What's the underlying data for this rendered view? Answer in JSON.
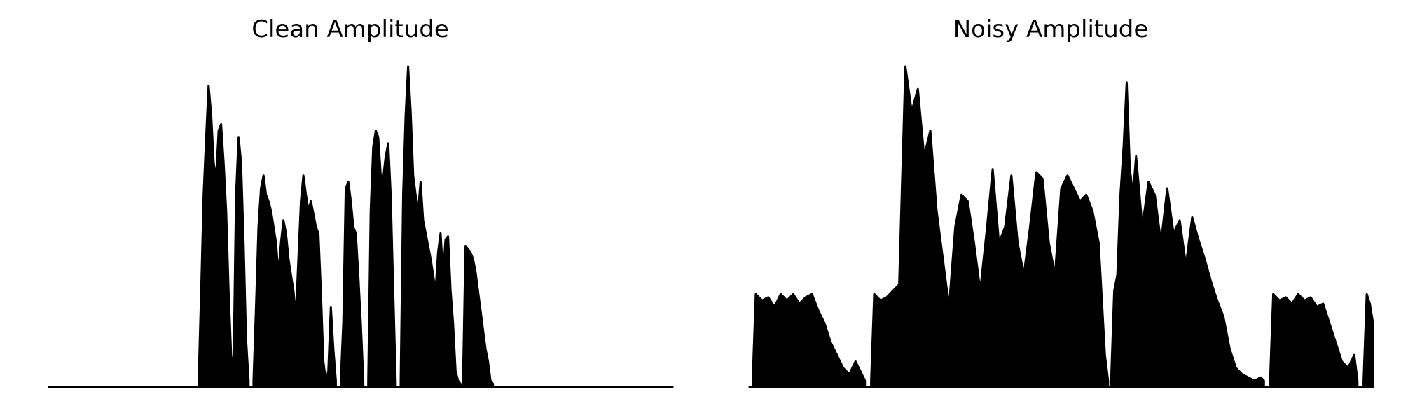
{
  "chart_data": [
    {
      "type": "area",
      "title": "Clean Amplitude",
      "xlabel": "",
      "ylabel": "",
      "grid": false,
      "axes_visible": false,
      "color": "#000000",
      "xlim": [
        0,
        1
      ],
      "ylim": [
        0,
        1
      ],
      "bursts": [
        {
          "x": [
            0.24,
            0.244,
            0.248,
            0.252,
            0.256,
            0.26,
            0.264,
            0.268,
            0.272,
            0.276,
            0.28,
            0.284,
            0.288,
            0.292,
            0.296,
            0.3,
            0.304,
            0.308,
            0.312,
            0.316,
            0.32
          ],
          "y": [
            0.02,
            0.3,
            0.6,
            0.78,
            0.94,
            0.85,
            0.7,
            0.65,
            0.8,
            0.82,
            0.7,
            0.55,
            0.3,
            0.1,
            0.05,
            0.6,
            0.78,
            0.7,
            0.45,
            0.15,
            0.02
          ]
        },
        {
          "x": [
            0.328,
            0.332,
            0.336,
            0.34,
            0.344,
            0.348,
            0.352,
            0.356,
            0.36,
            0.364,
            0.368,
            0.372,
            0.376,
            0.38,
            0.384,
            0.388,
            0.392,
            0.396,
            0.4,
            0.404,
            0.408,
            0.412,
            0.416,
            0.42,
            0.424,
            0.428,
            0.432,
            0.436,
            0.44,
            0.444,
            0.448,
            0.452,
            0.456,
            0.46
          ],
          "y": [
            0.02,
            0.25,
            0.5,
            0.62,
            0.66,
            0.6,
            0.58,
            0.55,
            0.5,
            0.45,
            0.35,
            0.45,
            0.52,
            0.48,
            0.4,
            0.35,
            0.3,
            0.22,
            0.4,
            0.58,
            0.66,
            0.6,
            0.55,
            0.58,
            0.54,
            0.5,
            0.48,
            0.3,
            0.08,
            0.02,
            0.05,
            0.25,
            0.12,
            0.02
          ]
        },
        {
          "x": [
            0.468,
            0.472,
            0.476,
            0.48,
            0.484,
            0.488,
            0.492,
            0.496,
            0.5,
            0.504
          ],
          "y": [
            0.02,
            0.2,
            0.62,
            0.64,
            0.58,
            0.5,
            0.48,
            0.35,
            0.2,
            0.02
          ]
        },
        {
          "x": [
            0.512,
            0.516,
            0.52,
            0.524,
            0.528,
            0.532,
            0.536,
            0.54,
            0.544,
            0.548,
            0.552,
            0.556
          ],
          "y": [
            0.02,
            0.55,
            0.75,
            0.8,
            0.78,
            0.66,
            0.65,
            0.72,
            0.76,
            0.6,
            0.3,
            0.02
          ]
        },
        {
          "x": [
            0.564,
            0.568,
            0.572,
            0.576,
            0.58,
            0.584,
            0.588,
            0.592,
            0.596,
            0.6,
            0.604,
            0.608,
            0.612,
            0.616,
            0.62,
            0.624,
            0.628,
            0.632,
            0.636,
            0.64,
            0.644,
            0.648,
            0.652,
            0.656,
            0.66
          ],
          "y": [
            0.02,
            0.6,
            0.85,
            1.0,
            0.86,
            0.66,
            0.6,
            0.55,
            0.64,
            0.52,
            0.48,
            0.44,
            0.4,
            0.35,
            0.3,
            0.42,
            0.48,
            0.35,
            0.46,
            0.47,
            0.3,
            0.2,
            0.05,
            0.02,
            0.01
          ]
        },
        {
          "x": [
            0.664,
            0.668,
            0.672,
            0.676,
            0.68,
            0.684,
            0.688,
            0.692,
            0.696,
            0.7,
            0.704,
            0.708,
            0.712
          ],
          "y": [
            0.02,
            0.44,
            0.43,
            0.42,
            0.4,
            0.36,
            0.3,
            0.24,
            0.18,
            0.12,
            0.08,
            0.02,
            0.01
          ]
        }
      ]
    },
    {
      "type": "area",
      "title": "Noisy Amplitude",
      "xlabel": "",
      "ylabel": "",
      "grid": false,
      "axes_visible": false,
      "color": "#000000",
      "xlim": [
        0,
        1
      ],
      "ylim": [
        0,
        1
      ],
      "bursts": [
        {
          "x": [
            0.005,
            0.01,
            0.02,
            0.03,
            0.04,
            0.05,
            0.06,
            0.07,
            0.08,
            0.09,
            0.1,
            0.11,
            0.12,
            0.13,
            0.14,
            0.15,
            0.16,
            0.17,
            0.18,
            0.185
          ],
          "y": [
            0.02,
            0.29,
            0.27,
            0.28,
            0.25,
            0.29,
            0.27,
            0.29,
            0.26,
            0.28,
            0.29,
            0.24,
            0.2,
            0.14,
            0.1,
            0.06,
            0.04,
            0.08,
            0.04,
            0.02
          ]
        },
        {
          "x": [
            0.195,
            0.2,
            0.21,
            0.22,
            0.23,
            0.24,
            0.25,
            0.26,
            0.27,
            0.28,
            0.29,
            0.3,
            0.31,
            0.32,
            0.33,
            0.34,
            0.35,
            0.36,
            0.37,
            0.38,
            0.39,
            0.4,
            0.41,
            0.42,
            0.43,
            0.44,
            0.45,
            0.46,
            0.47,
            0.48,
            0.49,
            0.5,
            0.51,
            0.52,
            0.53,
            0.54,
            0.55,
            0.56,
            0.57,
            0.575
          ],
          "y": [
            0.02,
            0.29,
            0.27,
            0.28,
            0.3,
            0.32,
            1.0,
            0.86,
            0.93,
            0.72,
            0.8,
            0.55,
            0.4,
            0.25,
            0.5,
            0.6,
            0.58,
            0.45,
            0.3,
            0.48,
            0.68,
            0.45,
            0.5,
            0.66,
            0.45,
            0.35,
            0.5,
            0.67,
            0.65,
            0.45,
            0.35,
            0.62,
            0.66,
            0.62,
            0.58,
            0.6,
            0.55,
            0.45,
            0.1,
            0.02
          ]
        },
        {
          "x": [
            0.58,
            0.585,
            0.59,
            0.595,
            0.6,
            0.605,
            0.61,
            0.615,
            0.62,
            0.63,
            0.64,
            0.65,
            0.66,
            0.67,
            0.68,
            0.69,
            0.7,
            0.71,
            0.72,
            0.73,
            0.74,
            0.75,
            0.76,
            0.77,
            0.78,
            0.79,
            0.8,
            0.81,
            0.82,
            0.825
          ],
          "y": [
            0.02,
            0.3,
            0.35,
            0.6,
            0.75,
            0.95,
            0.68,
            0.6,
            0.72,
            0.5,
            0.64,
            0.6,
            0.45,
            0.62,
            0.48,
            0.52,
            0.38,
            0.53,
            0.46,
            0.4,
            0.33,
            0.27,
            0.22,
            0.12,
            0.06,
            0.04,
            0.03,
            0.02,
            0.03,
            0.02
          ]
        },
        {
          "x": [
            0.835,
            0.84,
            0.85,
            0.86,
            0.87,
            0.88,
            0.89,
            0.9,
            0.91,
            0.92,
            0.93,
            0.94,
            0.95,
            0.96,
            0.97,
            0.975
          ],
          "y": [
            0.02,
            0.29,
            0.27,
            0.28,
            0.26,
            0.29,
            0.27,
            0.28,
            0.25,
            0.26,
            0.2,
            0.14,
            0.08,
            0.06,
            0.1,
            0.02
          ]
        },
        {
          "x": [
            0.985,
            0.99,
            0.995,
            1.0
          ],
          "y": [
            0.02,
            0.29,
            0.26,
            0.2
          ]
        }
      ]
    }
  ]
}
